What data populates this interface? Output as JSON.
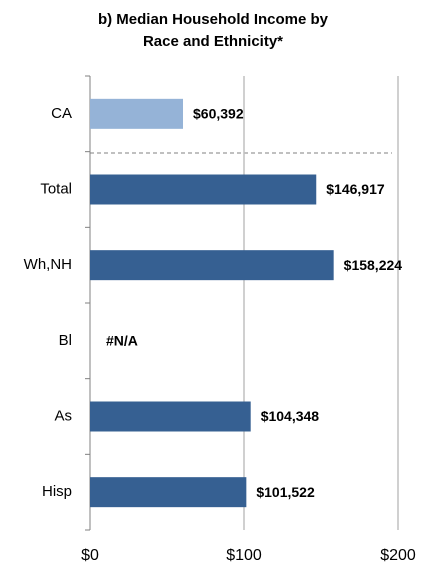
{
  "chart_data": {
    "type": "bar",
    "orientation": "horizontal",
    "title_lines": [
      "b) Median Household Income by",
      "Race and Ethnicity*"
    ],
    "categories": [
      "CA",
      "Total",
      "Wh,NH",
      "Bl",
      "As",
      "Hisp"
    ],
    "values": [
      60.392,
      146.917,
      158.224,
      null,
      104.348,
      101.522
    ],
    "value_labels": [
      "$60,392",
      "$146,917",
      "$158,224",
      "#N/A",
      "$104,348",
      "$101,522"
    ],
    "colors": [
      "#95b3d7",
      "#366092",
      "#366092",
      "#366092",
      "#366092",
      "#366092"
    ],
    "xlim": [
      0,
      200
    ],
    "xticks": [
      {
        "value": 0,
        "label": "$0"
      },
      {
        "value": 100,
        "label": "$100"
      },
      {
        "value": 200,
        "label": "$200"
      }
    ],
    "grid": true
  }
}
